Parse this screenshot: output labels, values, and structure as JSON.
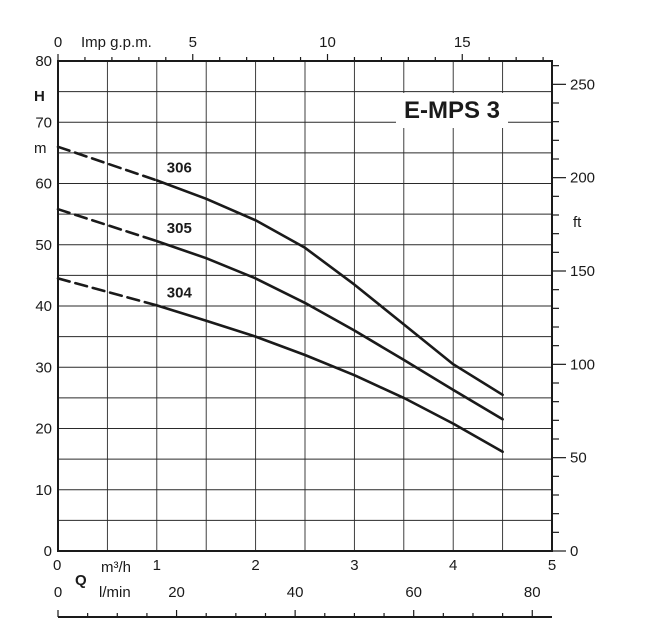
{
  "chart_data": {
    "type": "line",
    "title": "E-MPS 3",
    "x_primary": {
      "unit": "m³/h",
      "range": [
        0,
        5
      ],
      "ticks": [
        "0",
        "1",
        "2",
        "3",
        "4",
        "5"
      ]
    },
    "x_lmin": {
      "unit": "l/min",
      "range": [
        0,
        83.33
      ],
      "ticks": [
        "0",
        "20",
        "40",
        "60",
        "80"
      ]
    },
    "x_imp": {
      "unit": "Imp g.p.m.",
      "range": [
        0,
        18.33
      ],
      "ticks": [
        "0",
        "5",
        "10",
        "15"
      ]
    },
    "y_left": {
      "label": "H",
      "unit": "m",
      "range": [
        0,
        80
      ],
      "ticks": [
        "0",
        "10",
        "20",
        "30",
        "40",
        "50",
        "60",
        "70",
        "80"
      ]
    },
    "y_right": {
      "unit": "ft",
      "range": [
        0,
        262.5
      ],
      "ticks": [
        "0",
        "50",
        "100",
        "150",
        "200",
        "250"
      ]
    },
    "flow_label": "Q",
    "grid": true,
    "series": [
      {
        "name": "306",
        "dashed": [
          [
            0,
            66
          ],
          [
            1,
            60.5
          ]
        ],
        "solid": [
          [
            1,
            60.5
          ],
          [
            1.5,
            57.5
          ],
          [
            2,
            54
          ],
          [
            2.5,
            49.5
          ],
          [
            3,
            43.5
          ],
          [
            3.5,
            37
          ],
          [
            4,
            30.5
          ],
          [
            4.5,
            25.5
          ]
        ]
      },
      {
        "name": "305",
        "dashed": [
          [
            0,
            55.8
          ],
          [
            1,
            50.6
          ]
        ],
        "solid": [
          [
            1,
            50.6
          ],
          [
            1.5,
            47.8
          ],
          [
            2,
            44.5
          ],
          [
            2.5,
            40.5
          ],
          [
            3,
            36
          ],
          [
            3.5,
            31.2
          ],
          [
            4,
            26.3
          ],
          [
            4.5,
            21.5
          ]
        ]
      },
      {
        "name": "304",
        "dashed": [
          [
            0,
            44.5
          ],
          [
            1,
            40.1
          ]
        ],
        "solid": [
          [
            1,
            40.1
          ],
          [
            1.5,
            37.6
          ],
          [
            2,
            35
          ],
          [
            2.5,
            32
          ],
          [
            3,
            28.7
          ],
          [
            3.5,
            25
          ],
          [
            4,
            20.8
          ],
          [
            4.5,
            16.2
          ]
        ]
      }
    ]
  }
}
